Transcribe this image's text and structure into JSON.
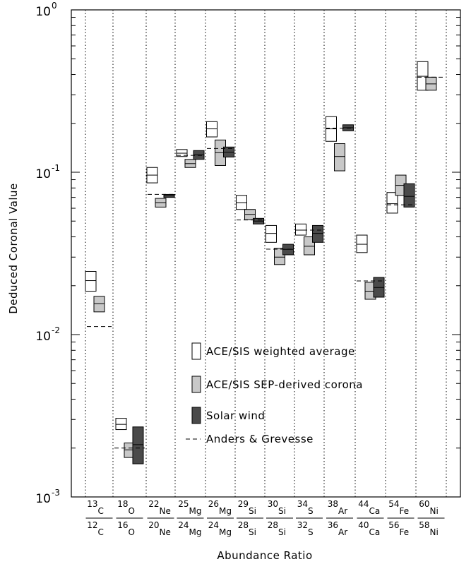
{
  "chart_data": {
    "type": "box",
    "ylabel": "Deduced Coronal Value",
    "xlabel": "Abundance Ratio",
    "yscale": "log",
    "ylim": [
      0.001,
      1
    ],
    "y_ticks": [
      {
        "value": 0.001,
        "mantissa": "10",
        "exp": "-3"
      },
      {
        "value": 0.01,
        "mantissa": "10",
        "exp": "-2"
      },
      {
        "value": 0.1,
        "mantissa": "10",
        "exp": "-1"
      },
      {
        "value": 1,
        "mantissa": "10",
        "exp": "0"
      }
    ],
    "grid": "dotted vertical separators between ratio groups",
    "legend_position": "middle-right",
    "categories": [
      {
        "num_mass": "13",
        "num_el": "C",
        "den_mass": "12",
        "den_el": "C"
      },
      {
        "num_mass": "18",
        "num_el": "O",
        "den_mass": "16",
        "den_el": "O"
      },
      {
        "num_mass": "22",
        "num_el": "Ne",
        "den_mass": "20",
        "den_el": "Ne"
      },
      {
        "num_mass": "25",
        "num_el": "Mg",
        "den_mass": "24",
        "den_el": "Mg"
      },
      {
        "num_mass": "26",
        "num_el": "Mg",
        "den_mass": "24",
        "den_el": "Mg"
      },
      {
        "num_mass": "29",
        "num_el": "Si",
        "den_mass": "28",
        "den_el": "Si"
      },
      {
        "num_mass": "30",
        "num_el": "Si",
        "den_mass": "28",
        "den_el": "Si"
      },
      {
        "num_mass": "34",
        "num_el": "S",
        "den_mass": "32",
        "den_el": "S"
      },
      {
        "num_mass": "38",
        "num_el": "Ar",
        "den_mass": "36",
        "den_el": "Ar"
      },
      {
        "num_mass": "44",
        "num_el": "Ca",
        "den_mass": "40",
        "den_el": "Ca"
      },
      {
        "num_mass": "54",
        "num_el": "Fe",
        "den_mass": "56",
        "den_el": "Fe"
      },
      {
        "num_mass": "60",
        "num_el": "Ni",
        "den_mass": "58",
        "den_el": "Ni"
      }
    ],
    "series": [
      {
        "name": "ACE/SIS weighted average",
        "color": "#ffffff",
        "points": [
          {
            "cat": 0,
            "low": 0.0185,
            "mid": 0.0215,
            "high": 0.0245
          },
          {
            "cat": 1,
            "low": 0.0026,
            "mid": 0.0028,
            "high": 0.00305
          },
          {
            "cat": 2,
            "low": 0.086,
            "mid": 0.096,
            "high": 0.107
          },
          {
            "cat": 3,
            "low": 0.125,
            "mid": 0.131,
            "high": 0.138
          },
          {
            "cat": 4,
            "low": 0.165,
            "mid": 0.185,
            "high": 0.205
          },
          {
            "cat": 5,
            "low": 0.059,
            "mid": 0.065,
            "high": 0.072
          },
          {
            "cat": 6,
            "low": 0.037,
            "mid": 0.042,
            "high": 0.047
          },
          {
            "cat": 7,
            "low": 0.041,
            "mid": 0.044,
            "high": 0.048
          },
          {
            "cat": 8,
            "low": 0.155,
            "mid": 0.185,
            "high": 0.22
          },
          {
            "cat": 9,
            "low": 0.032,
            "mid": 0.036,
            "high": 0.041
          },
          {
            "cat": 10,
            "low": 0.056,
            "mid": 0.064,
            "high": 0.075
          },
          {
            "cat": 11,
            "low": 0.32,
            "mid": 0.39,
            "high": 0.48
          }
        ]
      },
      {
        "name": "ACE/SIS SEP-derived corona",
        "color": "#c8c8c8",
        "points": [
          {
            "cat": 0,
            "low": 0.0138,
            "mid": 0.0155,
            "high": 0.0172
          },
          {
            "cat": 1,
            "low": 0.00175,
            "mid": 0.00195,
            "high": 0.00215
          },
          {
            "cat": 2,
            "low": 0.061,
            "mid": 0.065,
            "high": 0.069
          },
          {
            "cat": 3,
            "low": 0.107,
            "mid": 0.113,
            "high": 0.12
          },
          {
            "cat": 4,
            "low": 0.11,
            "mid": 0.132,
            "high": 0.158
          },
          {
            "cat": 5,
            "low": 0.051,
            "mid": 0.055,
            "high": 0.059
          },
          {
            "cat": 6,
            "low": 0.027,
            "mid": 0.03,
            "high": 0.034
          },
          {
            "cat": 7,
            "low": 0.031,
            "mid": 0.035,
            "high": 0.04
          },
          {
            "cat": 8,
            "low": 0.102,
            "mid": 0.125,
            "high": 0.15
          },
          {
            "cat": 9,
            "low": 0.0165,
            "mid": 0.0185,
            "high": 0.021
          },
          {
            "cat": 10,
            "low": 0.072,
            "mid": 0.083,
            "high": 0.096
          },
          {
            "cat": 11,
            "low": 0.32,
            "mid": 0.35,
            "high": 0.385
          }
        ]
      },
      {
        "name": "Solar wind",
        "color": "#4a4a4a",
        "points": [
          {
            "cat": 1,
            "low": 0.0016,
            "mid": 0.0021,
            "high": 0.0027
          },
          {
            "cat": 2,
            "low": 0.07,
            "mid": 0.0715,
            "high": 0.073
          },
          {
            "cat": 3,
            "low": 0.12,
            "mid": 0.128,
            "high": 0.136
          },
          {
            "cat": 4,
            "low": 0.124,
            "mid": 0.133,
            "high": 0.143
          },
          {
            "cat": 5,
            "low": 0.048,
            "mid": 0.05,
            "high": 0.052
          },
          {
            "cat": 6,
            "low": 0.031,
            "mid": 0.0335,
            "high": 0.036
          },
          {
            "cat": 7,
            "low": 0.037,
            "mid": 0.042,
            "high": 0.047
          },
          {
            "cat": 8,
            "low": 0.18,
            "mid": 0.188,
            "high": 0.196
          },
          {
            "cat": 9,
            "low": 0.017,
            "mid": 0.0195,
            "high": 0.0225
          },
          {
            "cat": 10,
            "low": 0.061,
            "mid": 0.071,
            "high": 0.085
          }
        ]
      },
      {
        "name": "Anders & Grevesse",
        "style": "dashed-line",
        "points": [
          {
            "cat": 0,
            "value": 0.0112
          },
          {
            "cat": 1,
            "value": 0.002
          },
          {
            "cat": 2,
            "value": 0.073
          },
          {
            "cat": 3,
            "value": 0.127
          },
          {
            "cat": 4,
            "value": 0.14
          },
          {
            "cat": 5,
            "value": 0.0508
          },
          {
            "cat": 6,
            "value": 0.0336
          },
          {
            "cat": 7,
            "value": 0.044
          },
          {
            "cat": 8,
            "value": 0.187
          },
          {
            "cat": 9,
            "value": 0.0214
          },
          {
            "cat": 10,
            "value": 0.063
          },
          {
            "cat": 11,
            "value": 0.385
          }
        ]
      }
    ],
    "legend": [
      {
        "label": "ACE/SIS weighted average",
        "swatch": "box",
        "color": "#ffffff"
      },
      {
        "label": "ACE/SIS SEP-derived corona",
        "swatch": "box",
        "color": "#c8c8c8"
      },
      {
        "label": "Solar wind",
        "swatch": "box",
        "color": "#4a4a4a"
      },
      {
        "label": "Anders & Grevesse",
        "swatch": "dash"
      }
    ]
  }
}
